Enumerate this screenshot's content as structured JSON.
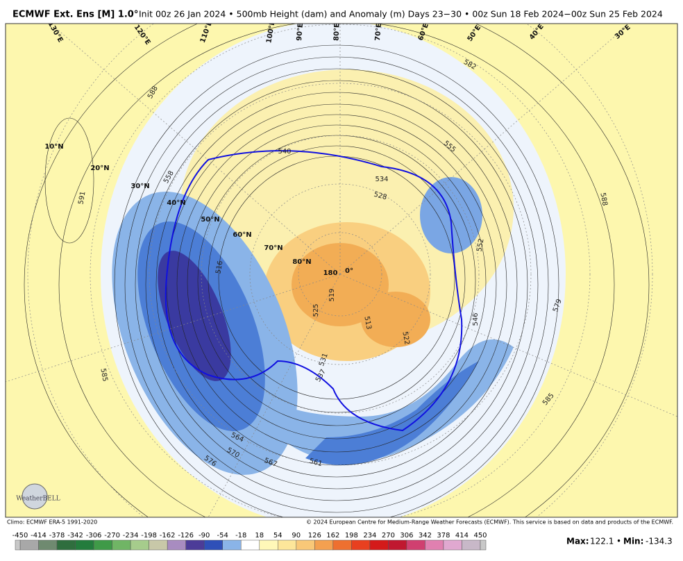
{
  "header": {
    "title_bold": "ECMWF Ext. Ens [M] 1.0°",
    "title": "Init 00z 26 Jan 2024 • 500mb Height (dam) and Anomaly (m) Days 23−30 • 00z Sun 18 Feb 2024−00z Sun 25 Feb 2024"
  },
  "map": {
    "latitude_labels": [
      "10°N",
      "20°N",
      "30°N",
      "40°N",
      "50°N",
      "60°N",
      "70°N",
      "80°N"
    ],
    "longitude_labels": [
      "130°E",
      "120°E",
      "110°E",
      "100°E",
      "90°E",
      "80°E",
      "70°E",
      "60°E",
      "50°E",
      "40°E",
      "30°E",
      "180",
      "0°"
    ],
    "contour_labels": [
      "588",
      "591",
      "585",
      "576",
      "570",
      "564",
      "567",
      "561",
      "558",
      "540",
      "534",
      "528",
      "516",
      "519",
      "525",
      "531",
      "537",
      "513",
      "522",
      "546",
      "552",
      "555",
      "579",
      "582",
      "585",
      "588"
    ]
  },
  "footer": {
    "climo": "Climo: ECMWF ERA-5 1991-2020",
    "copyright": "© 2024 European Centre for Medium-Range Weather Forecasts (ECMWF). This service is based on data and products of the ECMWF.",
    "logo": "WeatherBELL"
  },
  "colorbar": {
    "ticks": [
      -450,
      -414,
      -378,
      -342,
      -306,
      -270,
      -234,
      -198,
      -162,
      -126,
      -90,
      -54,
      -18,
      18,
      54,
      90,
      126,
      162,
      198,
      234,
      270,
      306,
      342,
      378,
      414,
      450
    ],
    "colors": [
      "#a8a8a8",
      "#6f8a70",
      "#2f6e3e",
      "#237c3d",
      "#3f9a48",
      "#70b565",
      "#a6cc8c",
      "#c8c8a8",
      "#a88cc0",
      "#4c3c98",
      "#2f50b8",
      "#8ab4e8",
      "#ffffff",
      "#fff8b8",
      "#fde69a",
      "#f9c878",
      "#f4a050",
      "#ee7030",
      "#e84020",
      "#d41a1a",
      "#c01830",
      "#d04070",
      "#e080b0",
      "#e0a8d0",
      "#c8b8c8"
    ]
  },
  "stats": {
    "max_label": "Max:",
    "max": 122.1,
    "separator": "•",
    "min_label": "Min:",
    "min": -134.3
  }
}
